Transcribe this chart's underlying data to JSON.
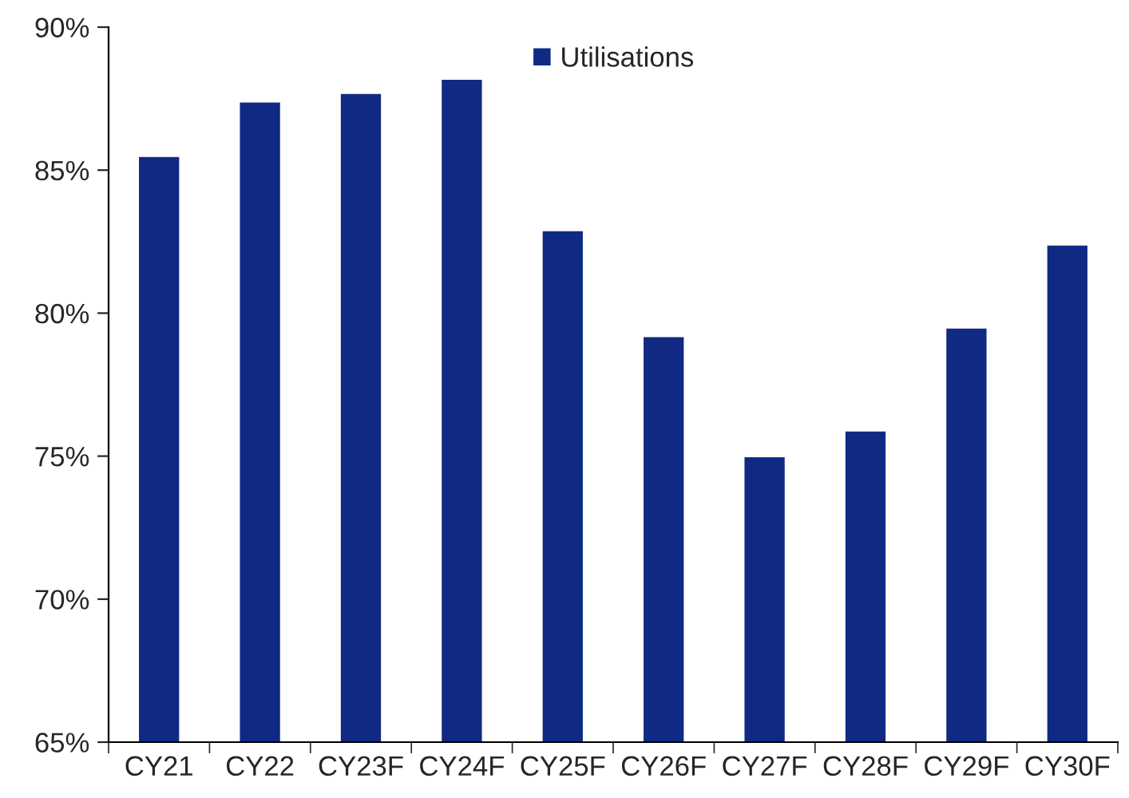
{
  "chart_data": {
    "type": "bar",
    "categories": [
      "CY21",
      "CY22",
      "CY23F",
      "CY24F",
      "CY25F",
      "CY26F",
      "CY27F",
      "CY28F",
      "CY29F",
      "CY30F"
    ],
    "series": [
      {
        "name": "Utilisations",
        "color": "#102a83",
        "values": [
          85.5,
          87.4,
          87.7,
          88.2,
          82.9,
          79.2,
          75.0,
          75.9,
          79.5,
          82.4
        ]
      }
    ],
    "ylim": [
      65,
      90
    ],
    "yticks": [
      {
        "value": 65,
        "label": "65%"
      },
      {
        "value": 70,
        "label": "70%"
      },
      {
        "value": 75,
        "label": "75%"
      },
      {
        "value": 80,
        "label": "80%"
      },
      {
        "value": 85,
        "label": "85%"
      },
      {
        "value": 90,
        "label": "90%"
      }
    ],
    "grid": false,
    "legend": "top"
  }
}
